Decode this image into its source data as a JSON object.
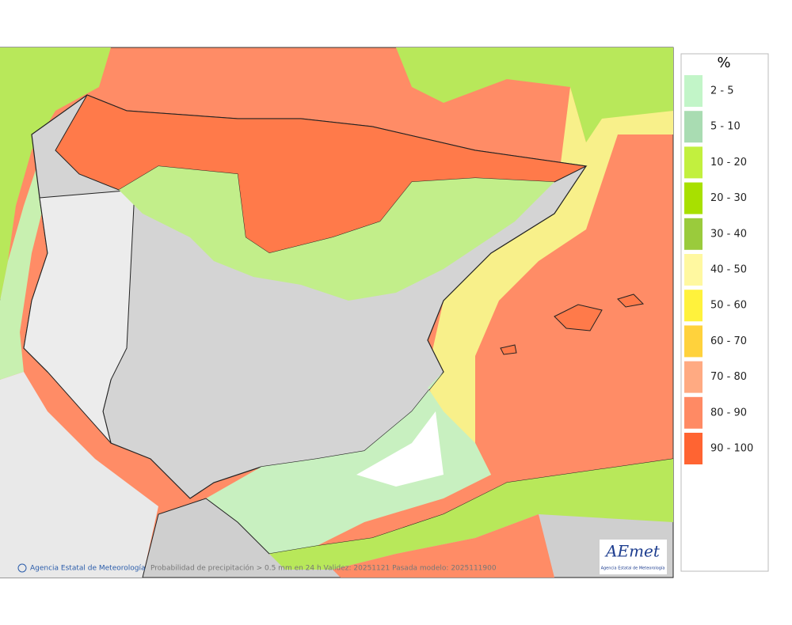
{
  "legend": {
    "title": "%",
    "items": [
      {
        "label": "2 - 5",
        "color": "#c2f5c8"
      },
      {
        "label": "5 - 10",
        "color": "#a9dcb2"
      },
      {
        "label": "10 - 20",
        "color": "#c2f03e"
      },
      {
        "label": "20 - 30",
        "color": "#a8e000"
      },
      {
        "label": "30 - 40",
        "color": "#9acb3c"
      },
      {
        "label": "40 - 50",
        "color": "#fff8a0"
      },
      {
        "label": "50 - 60",
        "color": "#fff23c"
      },
      {
        "label": "60 - 70",
        "color": "#ffd23c"
      },
      {
        "label": "70 - 80",
        "color": "#ffaa82"
      },
      {
        "label": "80 - 90",
        "color": "#ff8a64"
      },
      {
        "label": "90 - 100",
        "color": "#ff6432"
      }
    ]
  },
  "footer": {
    "credit": "Agencia Estatal de Meteorología",
    "caption": "Probabilidad de precipitación > 0.5 mm en 24 h Validez: 20251121 Pasada modelo: 2025111900"
  },
  "logo": {
    "text": "AEmet",
    "subtitle": "Agencia Estatal de Meteorología"
  }
}
